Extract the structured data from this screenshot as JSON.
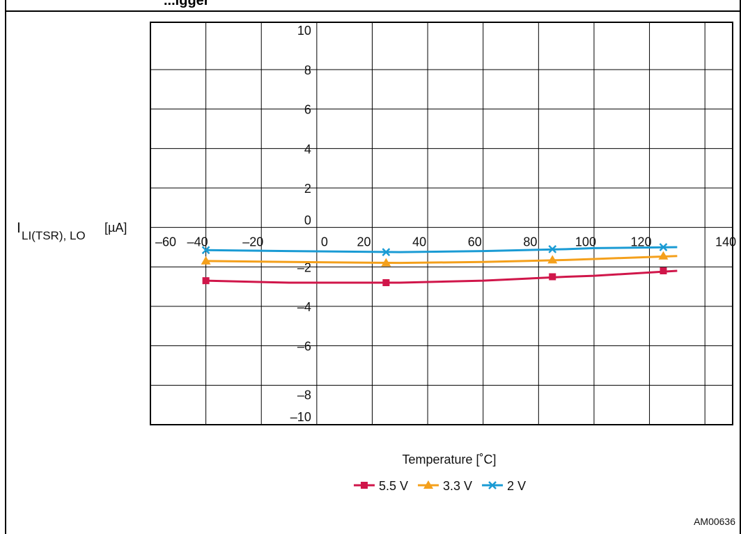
{
  "header_fragment": "...igger",
  "figure_id": "AM00636",
  "chart_data": {
    "type": "line",
    "ylabel_main": "I",
    "ylabel_sub": "LI(TSR), LO",
    "ylabel_unit": "[µA]",
    "xlabel": "Temperature [˚C]",
    "xlim": [
      -60,
      150
    ],
    "ylim": [
      -10,
      10.4
    ],
    "grid": true,
    "legend_position": "bottom-center",
    "x_ticks": [
      {
        "value": -60,
        "label": "–60"
      },
      {
        "value": -40,
        "label": "–40"
      },
      {
        "value": -20,
        "label": "–20"
      },
      {
        "value": 0,
        "label": "0"
      },
      {
        "value": 20,
        "label": "20"
      },
      {
        "value": 40,
        "label": "40"
      },
      {
        "value": 60,
        "label": "60"
      },
      {
        "value": 80,
        "label": "80"
      },
      {
        "value": 100,
        "label": "100"
      },
      {
        "value": 120,
        "label": "120"
      },
      {
        "value": 140,
        "label": "140"
      }
    ],
    "y_ticks": [
      {
        "value": 10,
        "label": "10"
      },
      {
        "value": 8,
        "label": "8"
      },
      {
        "value": 6,
        "label": "6"
      },
      {
        "value": 4,
        "label": "4"
      },
      {
        "value": 2,
        "label": "2"
      },
      {
        "value": 0,
        "label": "0"
      },
      {
        "value": -2,
        "label": "–2"
      },
      {
        "value": -4,
        "label": "–4"
      },
      {
        "value": -6,
        "label": "–6"
      },
      {
        "value": -8,
        "label": "–8"
      },
      {
        "value": -10,
        "label": "–10"
      }
    ],
    "series": [
      {
        "name": "5.5 V",
        "color": "#d0164a",
        "marker": "square",
        "line_x": [
          -40,
          -10,
          30,
          60,
          90,
          100,
          130
        ],
        "line_y": [
          -2.7,
          -2.8,
          -2.8,
          -2.7,
          -2.5,
          -2.45,
          -2.2
        ],
        "markers_x": [
          -40,
          25,
          85,
          125
        ],
        "markers_y": [
          -2.7,
          -2.8,
          -2.5,
          -2.2
        ]
      },
      {
        "name": "3.3 V",
        "color": "#f4a01c",
        "marker": "triangle",
        "line_x": [
          -40,
          -10,
          30,
          60,
          90,
          100,
          130
        ],
        "line_y": [
          -1.7,
          -1.75,
          -1.8,
          -1.75,
          -1.65,
          -1.6,
          -1.45
        ],
        "markers_x": [
          -40,
          25,
          85,
          125
        ],
        "markers_y": [
          -1.7,
          -1.8,
          -1.65,
          -1.45
        ]
      },
      {
        "name": "2 V",
        "color": "#1a9bd4",
        "marker": "x",
        "line_x": [
          -40,
          -10,
          30,
          60,
          90,
          100,
          130
        ],
        "line_y": [
          -1.15,
          -1.2,
          -1.25,
          -1.2,
          -1.1,
          -1.05,
          -1.0
        ],
        "markers_x": [
          -40,
          25,
          85,
          125
        ],
        "markers_y": [
          -1.15,
          -1.25,
          -1.1,
          -1.0
        ]
      }
    ]
  }
}
